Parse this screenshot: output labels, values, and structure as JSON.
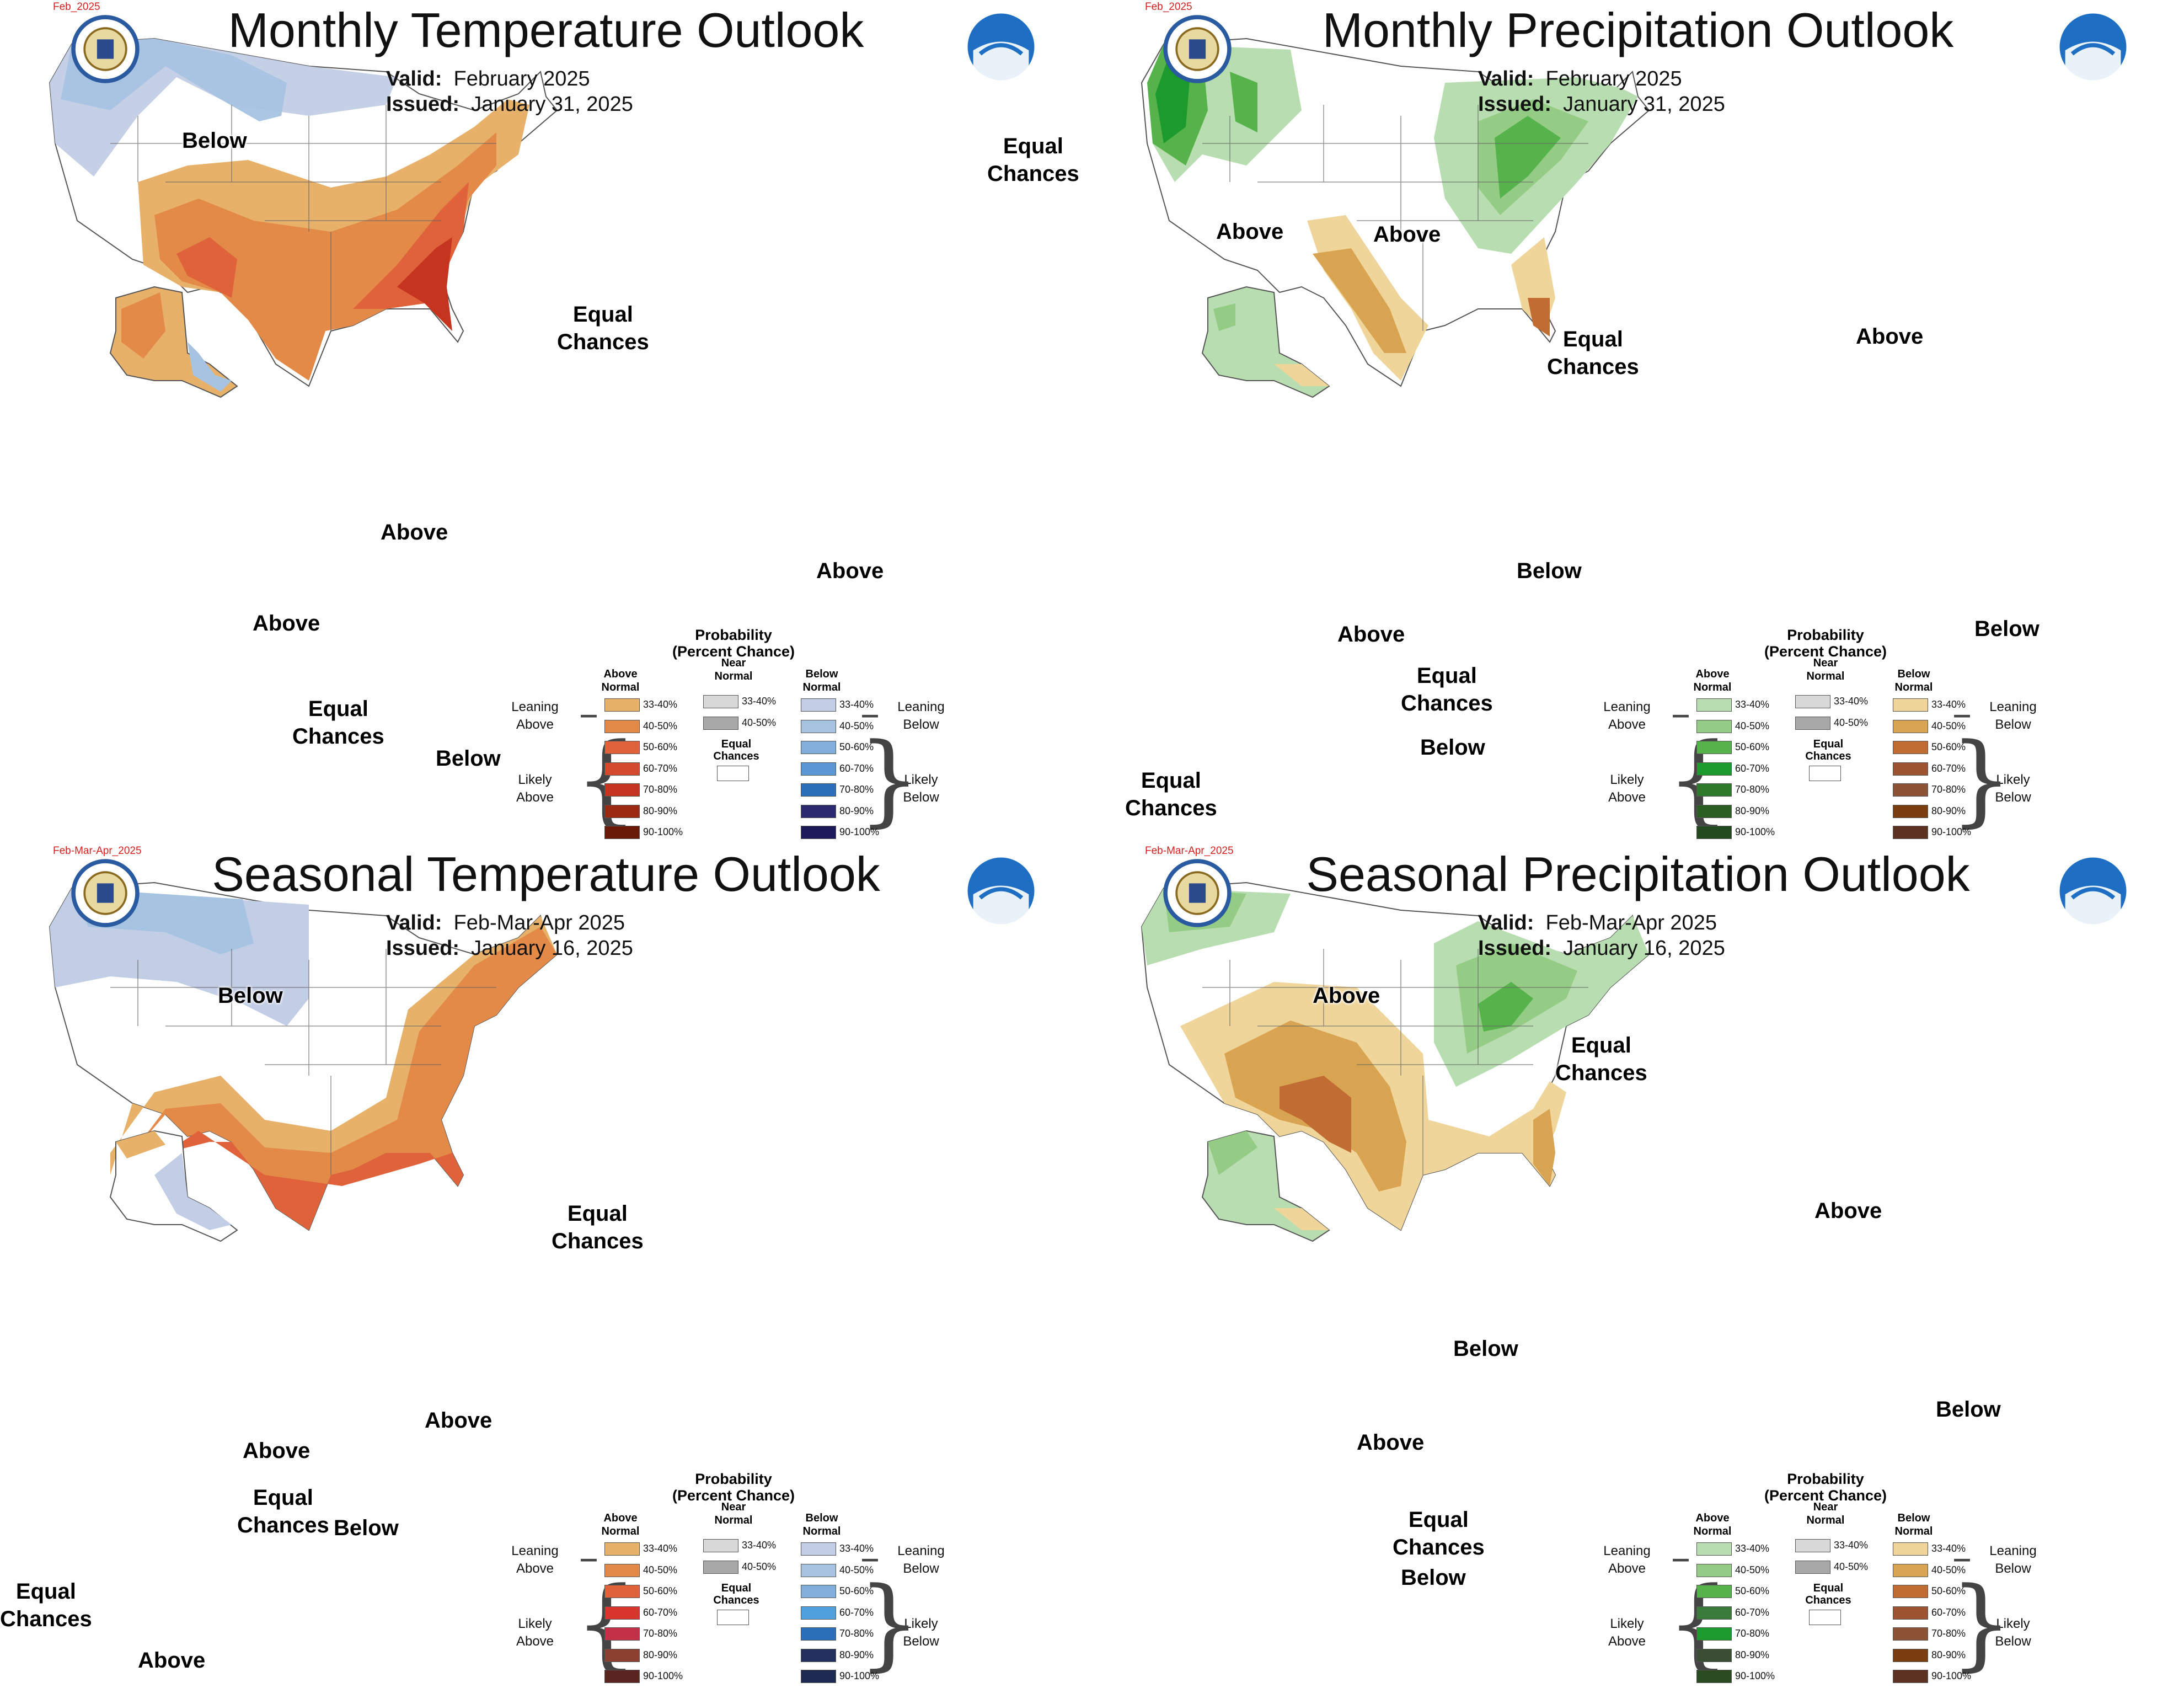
{
  "legend_common": {
    "title": "Probability\n(Percent Chance)",
    "col_above": "Above\nNormal",
    "col_near": "Near\nNormal",
    "col_below": "Below\nNormal",
    "leaning_above": "Leaning\nAbove",
    "likely_above": "Likely\nAbove",
    "leaning_below": "Leaning\nBelow",
    "likely_below": "Likely\nBelow",
    "equal_chances": "Equal\nChances",
    "ranges": [
      "33-40%",
      "40-50%",
      "50-60%",
      "60-70%",
      "70-80%",
      "80-90%",
      "90-100%"
    ],
    "near_ranges": [
      "33-40%",
      "40-50%"
    ]
  },
  "panels": [
    {
      "title": "Monthly Temperature Outlook",
      "seal_label": "Feb_2025",
      "valid_label": "Valid:",
      "valid_value": "February 2025",
      "issued_label": "Issued:",
      "issued_value": "January 31, 2025",
      "labels": [
        "Below",
        "Equal\nChances",
        "Equal\nChances",
        "Above",
        "Above",
        "Above",
        "Equal\nChances",
        "Below"
      ],
      "above_colors": [
        "#e8b16a",
        "#e38a48",
        "#e0623a",
        "#d44a2c",
        "#c4341e",
        "#9a2a12",
        "#6a1a08"
      ],
      "near_colors": [
        "#d8d8d8",
        "#a8a8a8"
      ],
      "below_colors": [
        "#c2cde6",
        "#a6c3e2",
        "#82aedc",
        "#5b98d3",
        "#2a6fb8",
        "#2b2a6e",
        "#1e1a5a"
      ]
    },
    {
      "title": "Monthly Precipitation Outlook",
      "seal_label": "Feb_2025",
      "valid_label": "Valid:",
      "valid_value": "February 2025",
      "issued_label": "Issued:",
      "issued_value": "January 31, 2025",
      "labels": [
        "Above",
        "Above",
        "Equal\nChances",
        "Above",
        "Below",
        "Below",
        "Above",
        "Equal\nChances",
        "Below",
        "Equal\nChances"
      ],
      "above_colors": [
        "#b8ddb0",
        "#94cc86",
        "#56b24a",
        "#1c9a2e",
        "#2c7a2a",
        "#2a5e22",
        "#234a1e"
      ],
      "near_colors": [
        "#d8d8d8",
        "#a8a8a8"
      ],
      "below_colors": [
        "#f0d59a",
        "#d8a451",
        "#c06c32",
        "#9c5430",
        "#8c5236",
        "#7a3e10",
        "#5e3222"
      ]
    },
    {
      "title": "Seasonal Temperature Outlook",
      "seal_label": "Feb-Mar-Apr_2025",
      "valid_label": "Valid:",
      "valid_value": "Feb-Mar-Apr 2025",
      "issued_label": "Issued:",
      "issued_value": "January 16, 2025",
      "labels": [
        "Below",
        "Equal\nChances",
        "Above",
        "Above",
        "Equal\nChances",
        "Below",
        "Equal\nChances",
        "Above"
      ],
      "above_colors": [
        "#e8b16a",
        "#e38a48",
        "#e0623a",
        "#d8352c",
        "#c43048",
        "#8c4030",
        "#5a2420"
      ],
      "near_colors": [
        "#d8d8d8",
        "#a8a8a8"
      ],
      "below_colors": [
        "#c2cde6",
        "#a6c3e2",
        "#82aedc",
        "#4fa0dc",
        "#2a6fb8",
        "#22305e",
        "#1e2a52"
      ]
    },
    {
      "title": "Seasonal Precipitation Outlook",
      "seal_label": "Feb-Mar-Apr_2025",
      "valid_label": "Valid:",
      "valid_value": "Feb-Mar-Apr 2025",
      "issued_label": "Issued:",
      "issued_value": "January 16, 2025",
      "labels": [
        "Above",
        "Equal\nChances",
        "Above",
        "Below",
        "Below",
        "Above",
        "Equal\nChances",
        "Below"
      ],
      "above_colors": [
        "#b8ddb0",
        "#94cc86",
        "#56b24a",
        "#3a7a3a",
        "#1c9a2e",
        "#3a4e36",
        "#2a4a22"
      ],
      "near_colors": [
        "#d8d8d8",
        "#a8a8a8"
      ],
      "below_colors": [
        "#f0d59a",
        "#d8a451",
        "#c06c32",
        "#9c5430",
        "#8c5236",
        "#7a3e10",
        "#5e3222"
      ]
    }
  ]
}
